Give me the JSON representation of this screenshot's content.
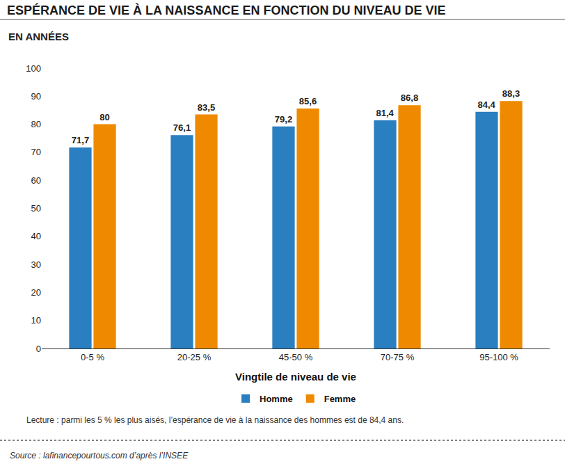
{
  "chart_data": {
    "type": "bar",
    "title": "ESPÉRANCE DE VIE À LA NAISSANCE EN FONCTION DU NIVEAU DE VIE",
    "subtitle": "EN ANNÉES",
    "x_label": "Vingtile de niveau de vie",
    "categories": [
      "0-5 %",
      "20-25 %",
      "45-50 %",
      "70-75 %",
      "95-100 %"
    ],
    "series": [
      {
        "name": "Homme",
        "color": "#2a7fc1",
        "values": [
          71.7,
          76.1,
          79.2,
          81.4,
          84.4
        ],
        "value_labels": [
          "71,7",
          "76,1",
          "79,2",
          "81,4",
          "84,4"
        ]
      },
      {
        "name": "Femme",
        "color": "#ef8a00",
        "values": [
          80,
          83.5,
          85.6,
          86.8,
          88.3
        ],
        "value_labels": [
          "80",
          "83,5",
          "85,6",
          "86,8",
          "88,3"
        ]
      }
    ],
    "ylim": [
      0,
      100
    ],
    "yticks": [
      0,
      10,
      20,
      30,
      40,
      50,
      60,
      70,
      80,
      90,
      100
    ],
    "grid": false,
    "data_labels": true,
    "legend": "bottom",
    "annotations": [
      "Lecture : parmi les 5 % les plus aisés, l’espérance de vie à la naissance des hommes est de 84,4 ans.",
      "Source : lafinancepourtous.com d’après l’INSEE"
    ]
  }
}
